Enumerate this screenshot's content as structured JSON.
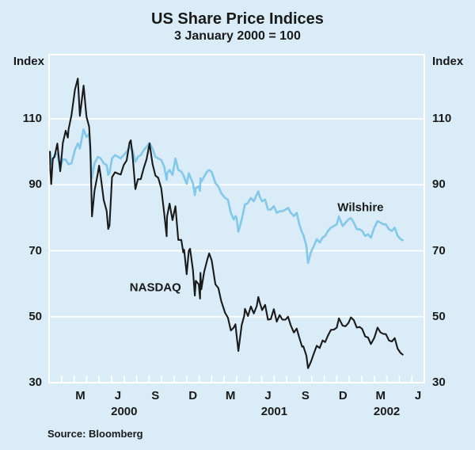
{
  "header": {
    "title": "US Share Price Indices",
    "subtitle": "3 January 2000 = 100"
  },
  "source_note": "Source: Bloomberg",
  "colors": {
    "background": "#d9ecf7",
    "grid": "#ffffff",
    "text": "#1a1a1a",
    "nasdaq": "#1a1a1a",
    "wilshire": "#82c8ea"
  },
  "chart_data": {
    "type": "line",
    "title": "US Share Price Indices",
    "subtitle": "3 January 2000 = 100",
    "x_unit": "months since January 2000",
    "x_domain": {
      "start": "2000-01",
      "end": "2002-07",
      "months": 30
    },
    "ylim": [
      30,
      130
    ],
    "grid": true,
    "axis": {
      "left_label": "Index",
      "right_label": "Index",
      "y_ticks": [
        110,
        90,
        70,
        50,
        30
      ],
      "month_labels": [
        {
          "t": "M",
          "m": 2.5
        },
        {
          "t": "J",
          "m": 5.5
        },
        {
          "t": "S",
          "m": 8.5
        },
        {
          "t": "D",
          "m": 11.5
        },
        {
          "t": "M",
          "m": 14.5
        },
        {
          "t": "J",
          "m": 17.5
        },
        {
          "t": "S",
          "m": 20.5
        },
        {
          "t": "D",
          "m": 23.5
        },
        {
          "t": "M",
          "m": 26.5
        },
        {
          "t": "J",
          "m": 29.5
        }
      ],
      "year_labels": [
        {
          "t": "2000",
          "m": 6
        },
        {
          "t": "2001",
          "m": 18
        },
        {
          "t": "2002",
          "m": 27
        }
      ]
    },
    "annotations": [
      {
        "text": "NASDAQ",
        "m": 8.5,
        "v": 58.8
      },
      {
        "text": "Wilshire",
        "m": 24.9,
        "v": 83.1
      }
    ],
    "series": [
      {
        "name": "Wilshire",
        "color": "#82c8ea",
        "width": 2.6,
        "points": [
          [
            0.07,
            100
          ],
          [
            0.2,
            96.3
          ],
          [
            0.43,
            99.0
          ],
          [
            0.66,
            99.5
          ],
          [
            0.89,
            94.9
          ],
          [
            1.1,
            97.8
          ],
          [
            1.33,
            97.6
          ],
          [
            1.56,
            96.2
          ],
          [
            1.79,
            96.5
          ],
          [
            2.07,
            100.6
          ],
          [
            2.3,
            102.5
          ],
          [
            2.46,
            101.0
          ],
          [
            2.76,
            106.8
          ],
          [
            2.99,
            104.5
          ],
          [
            3.2,
            105.5
          ],
          [
            3.43,
            92.0
          ],
          [
            3.63,
            96.5
          ],
          [
            3.9,
            98.5
          ],
          [
            4.13,
            98.0
          ],
          [
            4.37,
            96.5
          ],
          [
            4.6,
            96.0
          ],
          [
            4.73,
            93.0
          ],
          [
            4.83,
            93.5
          ],
          [
            5.03,
            98.0
          ],
          [
            5.27,
            99.0
          ],
          [
            5.5,
            98.5
          ],
          [
            5.73,
            98.0
          ],
          [
            5.97,
            99.0
          ],
          [
            6.2,
            100.0
          ],
          [
            6.43,
            101.5
          ],
          [
            6.67,
            100.5
          ],
          [
            6.9,
            97.0
          ],
          [
            7.1,
            98.5
          ],
          [
            7.33,
            99.0
          ],
          [
            7.57,
            100.5
          ],
          [
            7.8,
            101.5
          ],
          [
            8.03,
            102.7
          ],
          [
            8.27,
            101.0
          ],
          [
            8.5,
            98.5
          ],
          [
            8.73,
            98.0
          ],
          [
            8.97,
            97.5
          ],
          [
            9.2,
            95.5
          ],
          [
            9.4,
            91.5
          ],
          [
            9.43,
            93.5
          ],
          [
            9.63,
            94.5
          ],
          [
            9.87,
            93.0
          ],
          [
            10.1,
            98.0
          ],
          [
            10.33,
            94.5
          ],
          [
            10.57,
            94.0
          ],
          [
            10.73,
            93.0
          ],
          [
            11.0,
            90.3
          ],
          [
            11.17,
            93.5
          ],
          [
            11.27,
            92.5
          ],
          [
            11.5,
            90.5
          ],
          [
            11.65,
            86.9
          ],
          [
            11.73,
            89.0
          ],
          [
            11.97,
            89.5
          ],
          [
            12.07,
            88.2
          ],
          [
            12.1,
            92.0
          ],
          [
            12.17,
            91.0
          ],
          [
            12.4,
            92.5
          ],
          [
            12.63,
            94.0
          ],
          [
            12.8,
            94.5
          ],
          [
            13.0,
            93.9
          ],
          [
            13.3,
            90.5
          ],
          [
            13.53,
            89.5
          ],
          [
            13.76,
            87.5
          ],
          [
            14.07,
            86.0
          ],
          [
            14.3,
            85.5
          ],
          [
            14.53,
            81.5
          ],
          [
            14.76,
            79.5
          ],
          [
            14.9,
            80.5
          ],
          [
            14.99,
            80.0
          ],
          [
            15.13,
            75.8
          ],
          [
            15.4,
            79.5
          ],
          [
            15.6,
            83.0
          ],
          [
            15.66,
            84.0
          ],
          [
            15.9,
            84.5
          ],
          [
            16.13,
            86.0
          ],
          [
            16.37,
            85.0
          ],
          [
            16.6,
            87.0
          ],
          [
            16.73,
            88.0
          ],
          [
            16.83,
            86.5
          ],
          [
            17.03,
            85.0
          ],
          [
            17.27,
            85.5
          ],
          [
            17.5,
            82.5
          ],
          [
            17.73,
            82.5
          ],
          [
            17.97,
            83.5
          ],
          [
            18.2,
            81.5
          ],
          [
            18.43,
            82.0
          ],
          [
            18.66,
            82.0
          ],
          [
            18.9,
            82.5
          ],
          [
            19.1,
            83.0
          ],
          [
            19.33,
            81.5
          ],
          [
            19.57,
            80.5
          ],
          [
            19.8,
            81.5
          ],
          [
            20.0,
            78.1
          ],
          [
            20.23,
            75.5
          ],
          [
            20.33,
            74.8
          ],
          [
            20.57,
            71.5
          ],
          [
            20.7,
            66.3
          ],
          [
            20.93,
            69.5
          ],
          [
            21.17,
            71.5
          ],
          [
            21.4,
            73.5
          ],
          [
            21.63,
            72.5
          ],
          [
            21.87,
            74.0
          ],
          [
            22.07,
            74.5
          ],
          [
            22.3,
            76.0
          ],
          [
            22.53,
            77.0
          ],
          [
            22.77,
            77.5
          ],
          [
            23.0,
            78.0
          ],
          [
            23.17,
            80.4
          ],
          [
            23.47,
            77.5
          ],
          [
            23.7,
            78.5
          ],
          [
            23.93,
            79.5
          ],
          [
            24.13,
            79.9
          ],
          [
            24.37,
            78.5
          ],
          [
            24.6,
            76.5
          ],
          [
            24.83,
            76.5
          ],
          [
            25.03,
            76.0
          ],
          [
            25.27,
            74.5
          ],
          [
            25.5,
            75.0
          ],
          [
            25.73,
            74.0
          ],
          [
            26.0,
            77.0
          ],
          [
            26.26,
            79.0
          ],
          [
            26.5,
            78.5
          ],
          [
            26.73,
            78.0
          ],
          [
            26.93,
            78.0
          ],
          [
            27.17,
            76.5
          ],
          [
            27.4,
            76.0
          ],
          [
            27.63,
            77.0
          ],
          [
            27.87,
            74.5
          ],
          [
            28.1,
            73.5
          ],
          [
            28.27,
            73.2
          ]
        ]
      },
      {
        "name": "NASDAQ",
        "color": "#1a1a1a",
        "width": 2.1,
        "points": [
          [
            0.07,
            100
          ],
          [
            0.1,
            94.4
          ],
          [
            0.17,
            90.2
          ],
          [
            0.3,
            98.0
          ],
          [
            0.43,
            98.4
          ],
          [
            0.66,
            102.5
          ],
          [
            0.89,
            94.1
          ],
          [
            1.1,
            102.7
          ],
          [
            1.33,
            106.4
          ],
          [
            1.5,
            104.3
          ],
          [
            1.56,
            106.8
          ],
          [
            1.79,
            111.1
          ],
          [
            2.07,
            118.9
          ],
          [
            2.3,
            122.2
          ],
          [
            2.46,
            110.9
          ],
          [
            2.76,
            120.1
          ],
          [
            2.99,
            110.7
          ],
          [
            3.2,
            107.6
          ],
          [
            3.3,
            101.4
          ],
          [
            3.43,
            80.4
          ],
          [
            3.63,
            88.2
          ],
          [
            3.9,
            93.5
          ],
          [
            4.0,
            95.8
          ],
          [
            4.13,
            92.4
          ],
          [
            4.37,
            85.4
          ],
          [
            4.6,
            82.1
          ],
          [
            4.73,
            76.6
          ],
          [
            4.83,
            77.6
          ],
          [
            5.03,
            92.3
          ],
          [
            5.27,
            93.8
          ],
          [
            5.5,
            93.4
          ],
          [
            5.73,
            93.1
          ],
          [
            5.97,
            96.0
          ],
          [
            6.2,
            97.4
          ],
          [
            6.43,
            102.8
          ],
          [
            6.53,
            103.5
          ],
          [
            6.67,
            99.1
          ],
          [
            6.9,
            88.7
          ],
          [
            7.1,
            91.7
          ],
          [
            7.33,
            91.7
          ],
          [
            7.57,
            95.1
          ],
          [
            7.8,
            97.8
          ],
          [
            8.03,
            102.5
          ],
          [
            8.27,
            96.3
          ],
          [
            8.5,
            92.8
          ],
          [
            8.73,
            92.1
          ],
          [
            8.97,
            88.9
          ],
          [
            9.2,
            81.4
          ],
          [
            9.4,
            74.4
          ],
          [
            9.43,
            80.3
          ],
          [
            9.63,
            84.3
          ],
          [
            9.87,
            79.3
          ],
          [
            10.1,
            83.5
          ],
          [
            10.33,
            73.3
          ],
          [
            10.57,
            73.3
          ],
          [
            10.73,
            69.5
          ],
          [
            10.8,
            70.3
          ],
          [
            11.0,
            62.9
          ],
          [
            11.17,
            70.0
          ],
          [
            11.27,
            70.6
          ],
          [
            11.5,
            64.2
          ],
          [
            11.65,
            56.4
          ],
          [
            11.73,
            60.9
          ],
          [
            11.97,
            59.8
          ],
          [
            12.07,
            55.5
          ],
          [
            12.1,
            63.3
          ],
          [
            12.17,
            58.3
          ],
          [
            12.4,
            63.6
          ],
          [
            12.63,
            67.1
          ],
          [
            12.8,
            69.2
          ],
          [
            13.0,
            67.1
          ],
          [
            13.3,
            59.8
          ],
          [
            13.53,
            58.7
          ],
          [
            13.76,
            54.8
          ],
          [
            14.07,
            51.2
          ],
          [
            14.3,
            49.7
          ],
          [
            14.53,
            45.8
          ],
          [
            14.76,
            46.7
          ],
          [
            14.9,
            47.7
          ],
          [
            14.99,
            44.5
          ],
          [
            15.13,
            39.6
          ],
          [
            15.4,
            47.5
          ],
          [
            15.6,
            50.3
          ],
          [
            15.66,
            52.4
          ],
          [
            15.9,
            50.2
          ],
          [
            16.13,
            53.1
          ],
          [
            16.37,
            51.0
          ],
          [
            16.6,
            53.2
          ],
          [
            16.73,
            56.0
          ],
          [
            16.83,
            54.5
          ],
          [
            17.03,
            52.0
          ],
          [
            17.27,
            53.6
          ],
          [
            17.5,
            49.1
          ],
          [
            17.73,
            49.3
          ],
          [
            17.97,
            52.3
          ],
          [
            18.2,
            48.5
          ],
          [
            18.43,
            50.5
          ],
          [
            18.66,
            49.1
          ],
          [
            18.9,
            49.1
          ],
          [
            19.1,
            50.0
          ],
          [
            19.33,
            47.3
          ],
          [
            19.57,
            45.2
          ],
          [
            19.8,
            46.4
          ],
          [
            20.0,
            43.7
          ],
          [
            20.23,
            40.9
          ],
          [
            20.33,
            41.0
          ],
          [
            20.57,
            38.2
          ],
          [
            20.7,
            34.4
          ],
          [
            20.93,
            36.3
          ],
          [
            21.17,
            38.9
          ],
          [
            21.4,
            41.2
          ],
          [
            21.63,
            40.5
          ],
          [
            21.87,
            42.8
          ],
          [
            22.07,
            42.3
          ],
          [
            22.3,
            44.3
          ],
          [
            22.53,
            46.0
          ],
          [
            22.77,
            46.1
          ],
          [
            23.0,
            46.7
          ],
          [
            23.17,
            49.5
          ],
          [
            23.47,
            47.3
          ],
          [
            23.7,
            47.1
          ],
          [
            23.93,
            48.1
          ],
          [
            24.13,
            49.8
          ],
          [
            24.37,
            48.9
          ],
          [
            24.6,
            46.7
          ],
          [
            24.83,
            46.9
          ],
          [
            25.03,
            46.3
          ],
          [
            25.27,
            44.0
          ],
          [
            25.5,
            43.7
          ],
          [
            25.73,
            41.7
          ],
          [
            26.0,
            43.6
          ],
          [
            26.26,
            46.7
          ],
          [
            26.5,
            45.2
          ],
          [
            26.73,
            44.8
          ],
          [
            26.93,
            44.7
          ],
          [
            27.17,
            42.8
          ],
          [
            27.4,
            42.5
          ],
          [
            27.63,
            43.5
          ],
          [
            27.87,
            40.3
          ],
          [
            28.1,
            39.0
          ],
          [
            28.27,
            38.5
          ]
        ]
      }
    ]
  }
}
